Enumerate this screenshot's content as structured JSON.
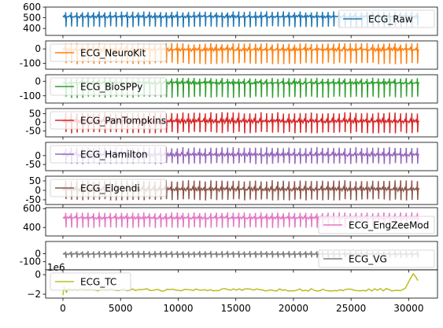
{
  "chart_data": {
    "type": "line",
    "x_ticks": [
      0,
      5000,
      10000,
      15000,
      20000,
      25000,
      30000
    ],
    "x_tick_labels": [
      "0",
      "5000",
      "10000",
      "15000",
      "20000",
      "25000",
      "30000"
    ],
    "xlim": [
      -1500,
      32500
    ],
    "x_range": [
      0,
      31000
    ],
    "x_offset_label": "1e6",
    "panels": [
      {
        "name": "ECG_Raw",
        "color": "#1f77b4",
        "legend_loc": "upper right",
        "ylim": [
          335,
          600
        ],
        "yticks": [
          400,
          500,
          600
        ],
        "ytick_labels": [
          "400",
          "500",
          "600"
        ],
        "baseline": 505,
        "r_peak": 555,
        "trough": 415,
        "beats": 64
      },
      {
        "name": "ECG_NeuroKit",
        "color": "#ff7f0e",
        "legend_loc": "upper left",
        "ylim": [
          -140,
          55
        ],
        "yticks": [
          -100,
          0
        ],
        "ytick_labels": [
          "-100",
          "0"
        ],
        "baseline": -10,
        "r_peak": 35,
        "trough": -100,
        "beats": 64
      },
      {
        "name": "ECG_BioSPPy",
        "color": "#2ca02c",
        "legend_loc": "upper left",
        "ylim": [
          -150,
          45
        ],
        "yticks": [
          -100,
          0
        ],
        "ytick_labels": [
          "-100",
          "0"
        ],
        "baseline": -15,
        "r_peak": 20,
        "trough": -110,
        "beats": 64
      },
      {
        "name": "ECG_PanTompkins",
        "color": "#d62728",
        "legend_loc": "upper left",
        "ylim": [
          -85,
          80
        ],
        "yticks": [
          -50,
          0,
          50
        ],
        "ytick_labels": [
          "-50",
          "0",
          "50"
        ],
        "baseline": 0,
        "r_peak": 55,
        "trough": -60,
        "beats": 64
      },
      {
        "name": "ECG_Hamilton",
        "color": "#9467bd",
        "legend_loc": "upper left",
        "ylim": [
          -85,
          75
        ],
        "yticks": [
          -50,
          0
        ],
        "ytick_labels": [
          "-50",
          "0"
        ],
        "baseline": 0,
        "r_peak": 45,
        "trough": -45,
        "beats": 64
      },
      {
        "name": "ECG_Elgendi",
        "color": "#8c564b",
        "legend_loc": "upper left",
        "ylim": [
          -75,
          75
        ],
        "yticks": [
          -50,
          0,
          50
        ],
        "ytick_labels": [
          "-50",
          "0",
          "50"
        ],
        "baseline": 0,
        "r_peak": 50,
        "trough": -50,
        "beats": 64
      },
      {
        "name": "ECG_EngZeeMod",
        "color": "#e377c2",
        "legend_loc": "lower right",
        "ylim": [
          310,
          610
        ],
        "yticks": [
          400,
          600
        ],
        "ytick_labels": [
          "400",
          "600"
        ],
        "baseline": 495,
        "r_peak": 555,
        "trough": 400,
        "beats": 64
      },
      {
        "name": "ECG_VG",
        "color": "#7f7f7f",
        "legend_loc": "lower right",
        "ylim": [
          -200,
          150
        ],
        "yticks": [
          -100,
          0
        ],
        "ytick_labels": [
          "-100",
          "0"
        ],
        "baseline": -10,
        "r_peak": 30,
        "trough": -50,
        "beats": 64
      },
      {
        "name": "ECG_TC",
        "color": "#bcbd22",
        "legend_loc": "upper left",
        "ylim": [
          -2.4,
          0.5
        ],
        "yticks": [
          -2,
          0
        ],
        "ytick_labels": [
          "−2",
          "0"
        ],
        "baseline": -1.55,
        "r_peak": -1.45,
        "trough": -1.65,
        "beats": 64
      }
    ]
  }
}
